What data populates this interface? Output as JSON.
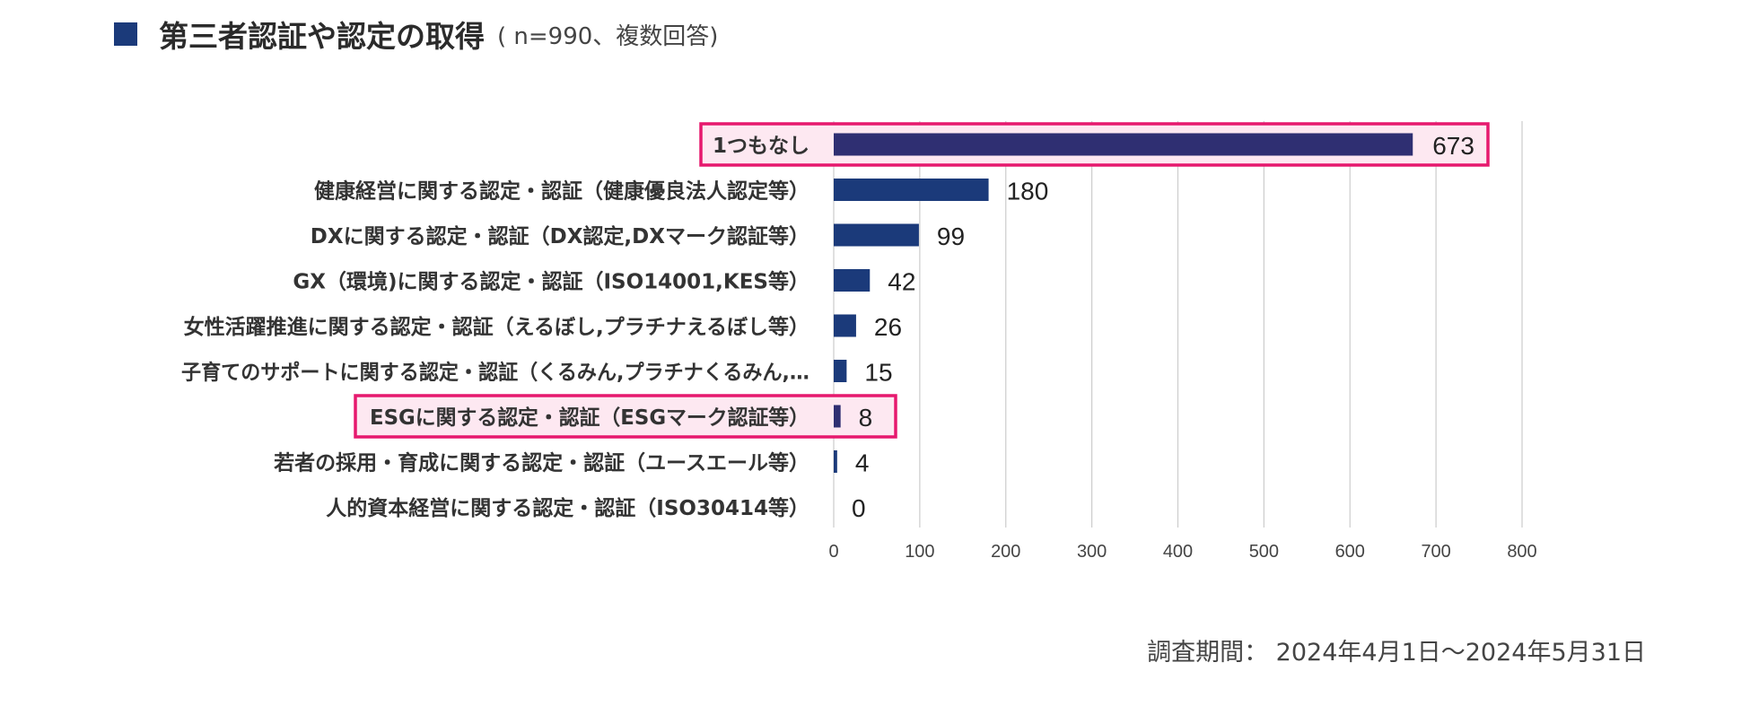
{
  "header": {
    "title": "第三者認証や認定の取得",
    "note": "( n=990、複数回答)"
  },
  "footnote": "調査期間： 2024年4月1日～2024年5月31日",
  "colors": {
    "bar": "#1b3a7a",
    "highlight_bar": "#2f2f72",
    "highlight_border": "#e6196e",
    "highlight_fill": "#fde8f1",
    "grid": "#cccccc"
  },
  "chart_data": {
    "type": "bar",
    "orientation": "horizontal",
    "title": "第三者認証や認定の取得",
    "categories": [
      "1つもなし",
      "健康経営に関する認定・認証（健康優良法人認定等）",
      "DXに関する認定・認証（DX認定,DXマーク認証等）",
      "GX（環境)に関する認定・認証（ISO14001,KES等）",
      "女性活躍推進に関する認定・認証（えるぼし,プラチナえるぼし等）",
      "子育てのサポートに関する認定・認証（くるみん,プラチナくるみん,…",
      "ESGに関する認定・認証（ESGマーク認証等）",
      "若者の採用・育成に関する認定・認証（ユースエール等）",
      "人的資本経営に関する認定・認証（ISO30414等）"
    ],
    "values": [
      673,
      180,
      99,
      42,
      26,
      15,
      8,
      4,
      0
    ],
    "highlighted": [
      true,
      false,
      false,
      false,
      false,
      false,
      true,
      false,
      false
    ],
    "xlim": [
      0,
      800
    ],
    "xticks": [
      0,
      100,
      200,
      300,
      400,
      500,
      600,
      700,
      800
    ],
    "grid": true,
    "xlabel": "",
    "ylabel": ""
  }
}
